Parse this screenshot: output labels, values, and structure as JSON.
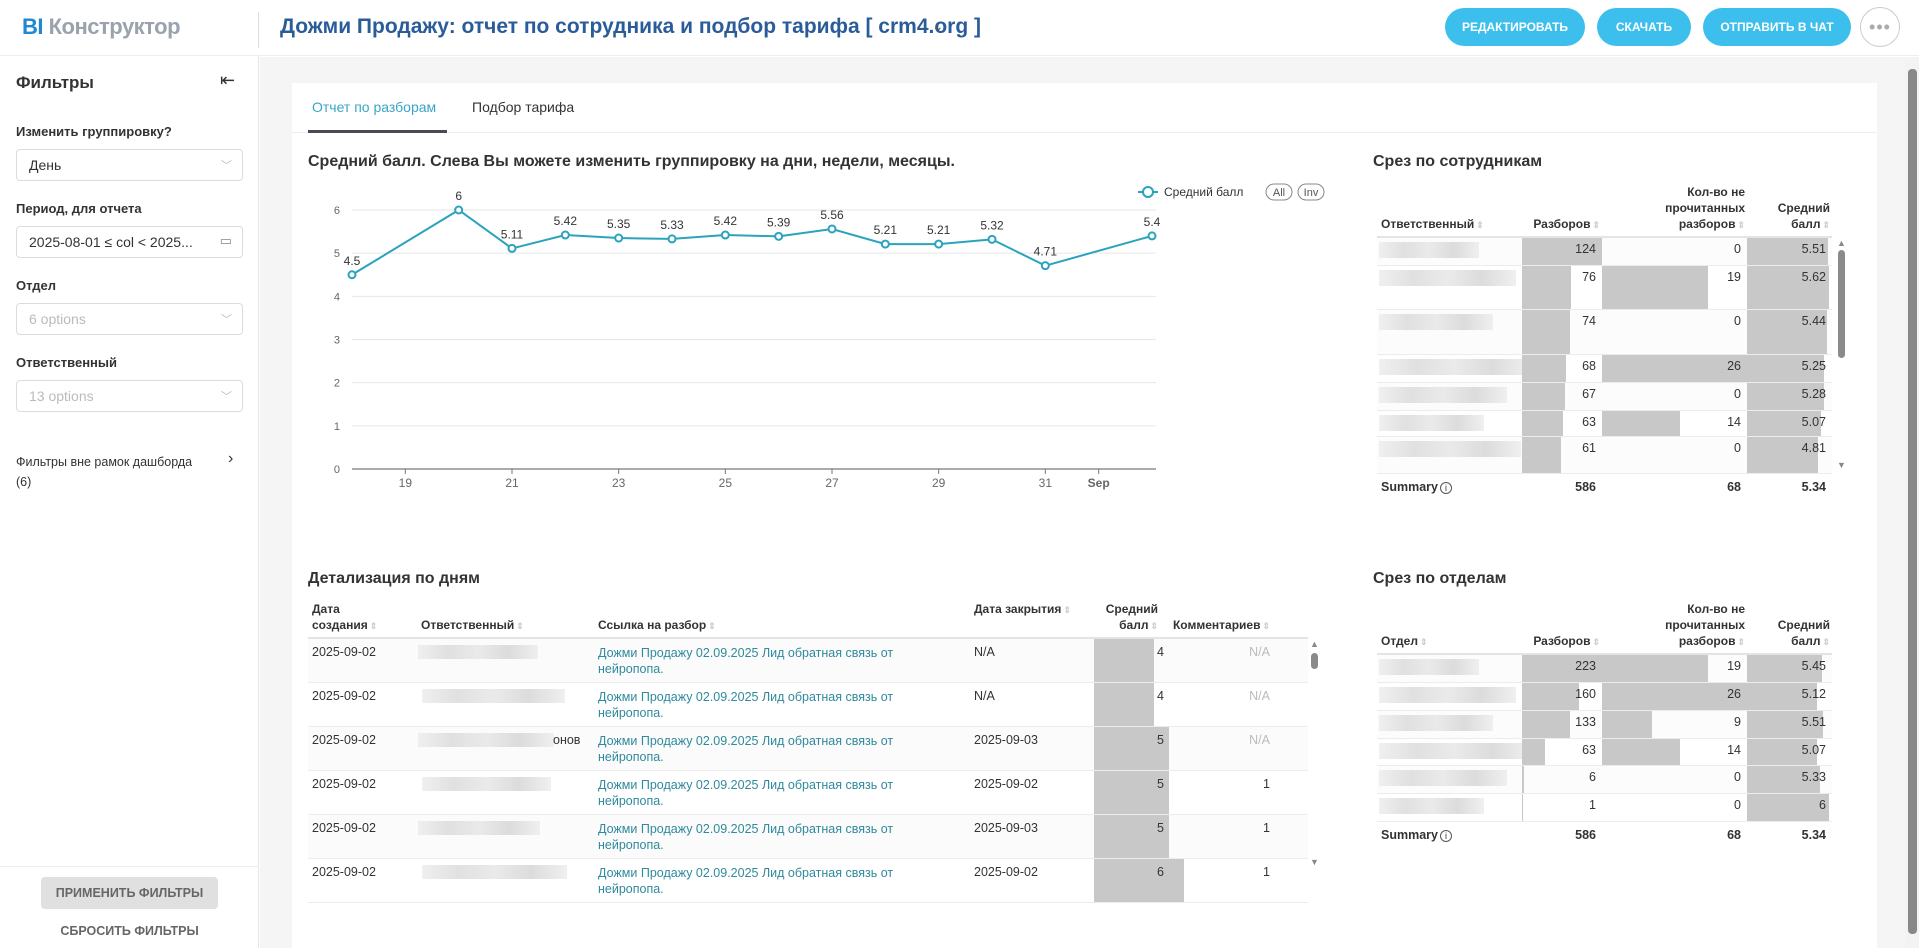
{
  "header": {
    "logo_bi": "BI",
    "logo_text": "Конструктор",
    "title": "Дожми Продажу: отчет по сотрудника и подбор тарифа [ crm4.org ]",
    "title_chevron": "chevron-down-icon",
    "buttons": {
      "edit": "РЕДАКТИРОВАТЬ",
      "download": "СКАЧАТЬ",
      "send_chat": "ОТПРАВИТЬ В ЧАТ",
      "more": "•••"
    }
  },
  "sidebar": {
    "title": "Фильтры",
    "collapse_icon": "⇤",
    "filters": [
      {
        "label": "Изменить группировку?",
        "value": "День",
        "placeholder": false
      },
      {
        "label": "Период, для отчета",
        "value": "2025-08-01 ≤ col < 2025...",
        "placeholder": false
      },
      {
        "label": "Отдел",
        "value": "6 options",
        "placeholder": true
      },
      {
        "label": "Ответственный",
        "value": "13 options",
        "placeholder": true
      }
    ],
    "outside_filters": "Фильтры вне рамок дашборда (6)",
    "apply": "ПРИМЕНИТЬ ФИЛЬТРЫ",
    "reset": "СБРОСИТЬ ФИЛЬТРЫ"
  },
  "tabs": [
    {
      "label": "Отчет по разборам",
      "active": true
    },
    {
      "label": "Подбор тарифа",
      "active": false
    }
  ],
  "chart_title": "Средний балл. Слева Вы можете изменить группировку на дни, недели, месяцы.",
  "chart_data": {
    "type": "line",
    "title": "Средний балл. Слева Вы можете изменить группировку на дни, недели, месяцы.",
    "xlabel": "",
    "ylabel": "",
    "x": [
      "Aug 18",
      "Aug 20",
      "Aug 21",
      "Aug 22",
      "Aug 23",
      "Aug 24",
      "Aug 25",
      "Aug 26",
      "Aug 27",
      "Aug 28",
      "Aug 29",
      "Aug 30",
      "Aug 31",
      "Sep 2"
    ],
    "x_day_index": [
      0,
      2,
      3,
      4,
      5,
      6,
      7,
      8,
      9,
      10,
      11,
      12,
      13,
      15
    ],
    "series": [
      {
        "name": "Средний балл",
        "color": "#2aa3bd",
        "values": [
          4.5,
          6,
          5.11,
          5.42,
          5.35,
          5.33,
          5.42,
          5.39,
          5.56,
          5.21,
          5.21,
          5.32,
          4.71,
          5.4
        ]
      }
    ],
    "data_labels": [
      "4.5",
      "6",
      "5.11",
      "5.42",
      "5.35",
      "5.33",
      "5.42",
      "5.39",
      "5.56",
      "5.21",
      "5.21",
      "5.32",
      "4.71",
      "5.4"
    ],
    "x_ticks": [
      {
        "day_index": 1,
        "label": "19"
      },
      {
        "day_index": 3,
        "label": "21"
      },
      {
        "day_index": 5,
        "label": "23"
      },
      {
        "day_index": 7,
        "label": "25"
      },
      {
        "day_index": 9,
        "label": "27"
      },
      {
        "day_index": 11,
        "label": "29"
      },
      {
        "day_index": 13,
        "label": "31"
      },
      {
        "day_index": 14,
        "label": "Sep"
      }
    ],
    "y_ticks": [
      "0",
      "1",
      "2",
      "3",
      "4",
      "5",
      "6"
    ],
    "ylim": [
      0,
      6
    ],
    "grid": true,
    "legend": {
      "position": "top-right",
      "label": "Средний балл",
      "all": "All",
      "inv": "Inv"
    }
  },
  "employees": {
    "title": "Срез по сотрудникам",
    "headers": [
      "Ответственный",
      "Разборов",
      "Кол-во не прочитанных разборов",
      "Средний балл"
    ],
    "rows": [
      {
        "reviews": 124,
        "unread": 0,
        "score": "5.51"
      },
      {
        "reviews": 76,
        "unread": 19,
        "score": "5.62"
      },
      {
        "reviews": 74,
        "unread": 0,
        "score": "5.44"
      },
      {
        "reviews": 68,
        "unread": 26,
        "score": "5.25"
      },
      {
        "reviews": 67,
        "unread": 0,
        "score": "5.28"
      },
      {
        "reviews": 63,
        "unread": 14,
        "score": "5.07"
      },
      {
        "reviews": 61,
        "unread": 0,
        "score": "4.81"
      }
    ],
    "summary": {
      "label": "Summary",
      "reviews": "586",
      "unread": "68",
      "score": "5.34"
    }
  },
  "departments": {
    "title": "Срез по отделам",
    "headers": [
      "Отдел",
      "Разборов",
      "Кол-во не прочитанных разборов",
      "Средний балл"
    ],
    "rows": [
      {
        "reviews": 223,
        "unread": 19,
        "score": "5.45"
      },
      {
        "reviews": 160,
        "unread": 26,
        "score": "5.12"
      },
      {
        "reviews": 133,
        "unread": 9,
        "score": "5.51"
      },
      {
        "reviews": 63,
        "unread": 14,
        "score": "5.07"
      },
      {
        "reviews": 6,
        "unread": 0,
        "score": "5.33"
      },
      {
        "reviews": 1,
        "unread": 0,
        "score": "6"
      }
    ],
    "summary": {
      "label": "Summary",
      "reviews": "586",
      "unread": "68",
      "score": "5.34"
    }
  },
  "details": {
    "title": "Детализация по дням",
    "headers": [
      "Дата создания",
      "Ответственный",
      "Ссылка на разбор",
      "Дата закрытия",
      "Средний балл",
      "Комментариев"
    ],
    "rows": [
      {
        "created": "2025-09-02",
        "name_suffix": "",
        "link": "Дожми Продажу 02.09.2025 Лид обратная связь от нейропопа.",
        "closed": "N/A",
        "score": "4",
        "comments": "N/A"
      },
      {
        "created": "2025-09-02",
        "name_suffix": "",
        "link": "Дожми Продажу 02.09.2025 Лид обратная связь от нейропопа.",
        "closed": "N/A",
        "score": "4",
        "comments": "N/A"
      },
      {
        "created": "2025-09-02",
        "name_suffix": "онов",
        "link": "Дожми Продажу 02.09.2025 Лид обратная связь от нейропопа.",
        "closed": "2025-09-03",
        "score": "5",
        "comments": "N/A"
      },
      {
        "created": "2025-09-02",
        "name_suffix": "",
        "link": "Дожми Продажу 02.09.2025 Лид обратная связь от нейропопа.",
        "closed": "2025-09-02",
        "score": "5",
        "comments": "1"
      },
      {
        "created": "2025-09-02",
        "name_suffix": "",
        "link": "Дожми Продажу 02.09.2025 Лид обратная связь от нейропопа.",
        "closed": "2025-09-03",
        "score": "5",
        "comments": "1"
      },
      {
        "created": "2025-09-02",
        "name_suffix": "",
        "link": "Дожми Продажу 02.09.2025 Лид обратная связь от нейропопа.",
        "closed": "2025-09-02",
        "score": "6",
        "comments": "1"
      }
    ]
  }
}
